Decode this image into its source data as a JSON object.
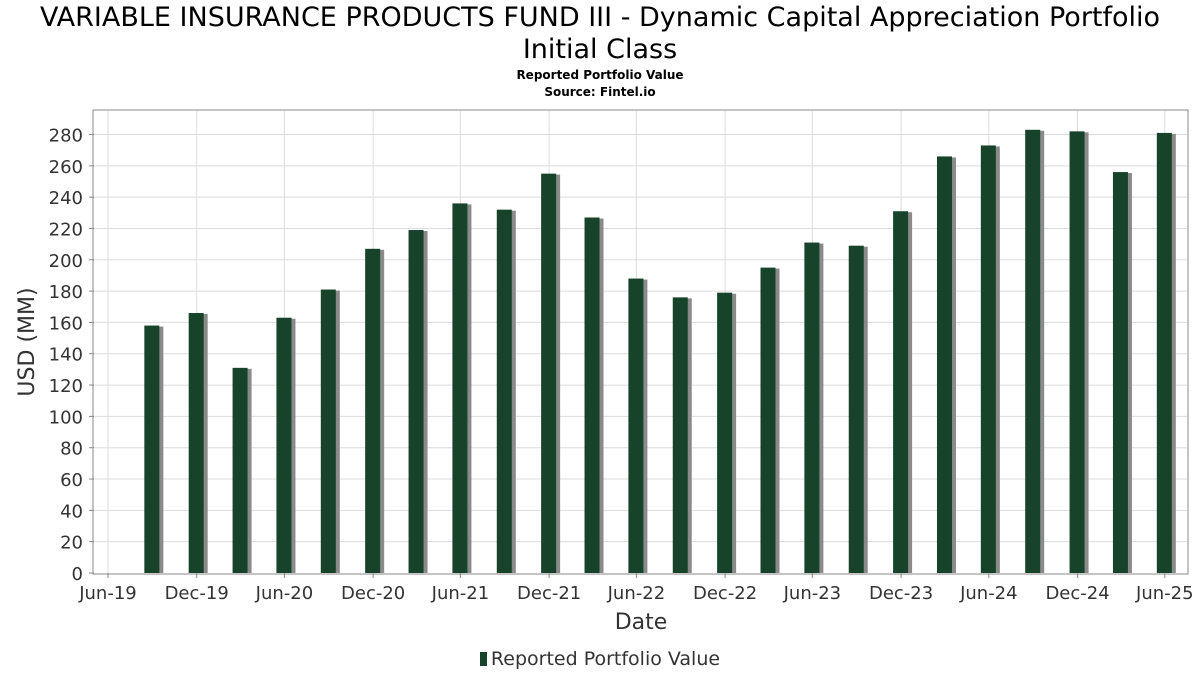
{
  "chart_data": {
    "type": "bar",
    "title_line1": "VARIABLE INSURANCE PRODUCTS FUND III - Dynamic Capital Appreciation Portfolio",
    "title_line2": "Initial Class",
    "subtitle": "Reported Portfolio Value",
    "source": "Source: Fintel.io",
    "xlabel": "Date",
    "ylabel": "USD (MM)",
    "ylim": [
      0,
      295
    ],
    "yticks": [
      0,
      20,
      40,
      60,
      80,
      100,
      120,
      140,
      160,
      180,
      200,
      220,
      240,
      260,
      280
    ],
    "xlim": [
      "2019-06-01",
      "2025-08-15"
    ],
    "xticks": [
      {
        "date": "2019-06-30",
        "label": "Jun-19"
      },
      {
        "date": "2019-12-31",
        "label": "Dec-19"
      },
      {
        "date": "2020-06-30",
        "label": "Jun-20"
      },
      {
        "date": "2020-12-31",
        "label": "Dec-20"
      },
      {
        "date": "2021-06-30",
        "label": "Jun-21"
      },
      {
        "date": "2021-12-31",
        "label": "Dec-21"
      },
      {
        "date": "2022-06-30",
        "label": "Jun-22"
      },
      {
        "date": "2022-12-31",
        "label": "Dec-22"
      },
      {
        "date": "2023-06-30",
        "label": "Jun-23"
      },
      {
        "date": "2023-12-31",
        "label": "Dec-23"
      },
      {
        "date": "2024-06-30",
        "label": "Jun-24"
      },
      {
        "date": "2024-12-31",
        "label": "Dec-24"
      },
      {
        "date": "2025-06-30",
        "label": "Jun-25"
      }
    ],
    "grid": true,
    "legend_position": "bottom-center",
    "series": [
      {
        "name": "Reported Portfolio Value",
        "color": "#17432a",
        "points": [
          {
            "date": "2019-09-30",
            "value": 158
          },
          {
            "date": "2019-12-31",
            "value": 166
          },
          {
            "date": "2020-03-31",
            "value": 131
          },
          {
            "date": "2020-06-30",
            "value": 163
          },
          {
            "date": "2020-09-30",
            "value": 181
          },
          {
            "date": "2020-12-31",
            "value": 207
          },
          {
            "date": "2021-03-31",
            "value": 219
          },
          {
            "date": "2021-06-30",
            "value": 236
          },
          {
            "date": "2021-09-30",
            "value": 232
          },
          {
            "date": "2021-12-31",
            "value": 255
          },
          {
            "date": "2022-03-31",
            "value": 227
          },
          {
            "date": "2022-06-30",
            "value": 188
          },
          {
            "date": "2022-09-30",
            "value": 176
          },
          {
            "date": "2022-12-31",
            "value": 179
          },
          {
            "date": "2023-03-31",
            "value": 195
          },
          {
            "date": "2023-06-30",
            "value": 211
          },
          {
            "date": "2023-09-30",
            "value": 209
          },
          {
            "date": "2023-12-31",
            "value": 231
          },
          {
            "date": "2024-03-31",
            "value": 266
          },
          {
            "date": "2024-06-30",
            "value": 273
          },
          {
            "date": "2024-09-30",
            "value": 283
          },
          {
            "date": "2024-12-31",
            "value": 282
          },
          {
            "date": "2025-03-31",
            "value": 256
          },
          {
            "date": "2025-06-30",
            "value": 281
          }
        ]
      }
    ]
  }
}
